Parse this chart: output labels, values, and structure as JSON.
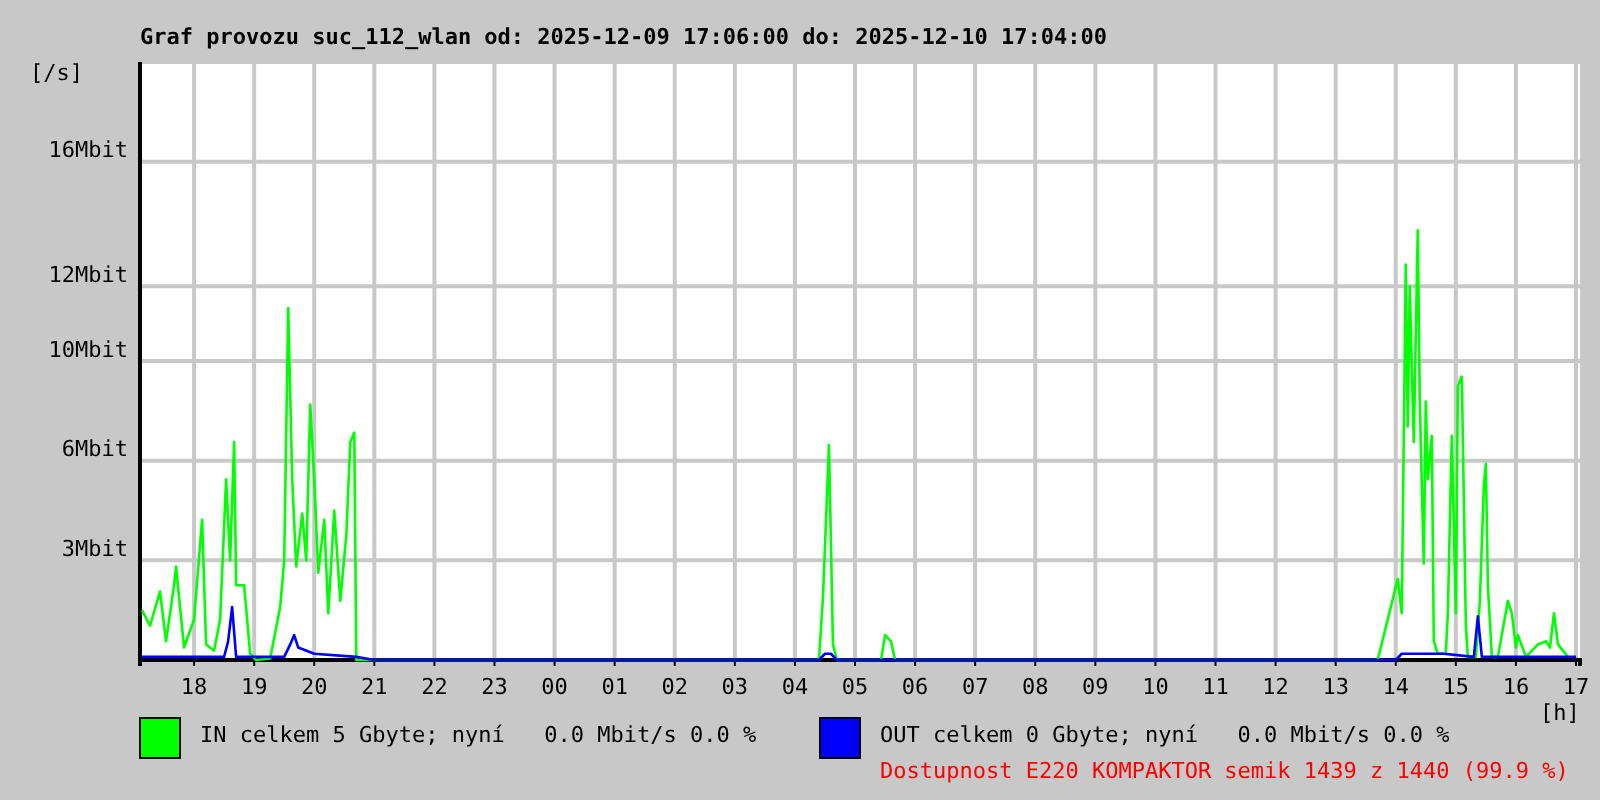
{
  "chart_data": {
    "type": "line",
    "title": "Graf provozu suc_112_wlan od: 2025-12-09 17:06:00 do: 2025-12-10 17:04:00",
    "ylabel": "[/s]",
    "xlabel": "[h]",
    "annotations": [
      "Dostupnost E220 KOMPAKTOR semik 1439 z 1440 (99.9 %)"
    ],
    "xlim": [
      "2025-12-09T17:06",
      "2025-12-10T17:04"
    ],
    "ylim": [
      0,
      19.2
    ],
    "xticks": [
      {
        "value": "2025-12-09T18:00",
        "label": "18"
      },
      {
        "value": "2025-12-09T19:00",
        "label": "19"
      },
      {
        "value": "2025-12-09T20:00",
        "label": "20"
      },
      {
        "value": "2025-12-09T21:00",
        "label": "21"
      },
      {
        "value": "2025-12-09T22:00",
        "label": "22"
      },
      {
        "value": "2025-12-09T23:00",
        "label": "23"
      },
      {
        "value": "2025-12-10T00:00",
        "label": "00"
      },
      {
        "value": "2025-12-10T01:00",
        "label": "01"
      },
      {
        "value": "2025-12-10T02:00",
        "label": "02"
      },
      {
        "value": "2025-12-10T03:00",
        "label": "03"
      },
      {
        "value": "2025-12-10T04:00",
        "label": "04"
      },
      {
        "value": "2025-12-10T05:00",
        "label": "05"
      },
      {
        "value": "2025-12-10T06:00",
        "label": "06"
      },
      {
        "value": "2025-12-10T07:00",
        "label": "07"
      },
      {
        "value": "2025-12-10T08:00",
        "label": "08"
      },
      {
        "value": "2025-12-10T09:00",
        "label": "09"
      },
      {
        "value": "2025-12-10T10:00",
        "label": "10"
      },
      {
        "value": "2025-12-10T11:00",
        "label": "11"
      },
      {
        "value": "2025-12-10T12:00",
        "label": "12"
      },
      {
        "value": "2025-12-10T13:00",
        "label": "13"
      },
      {
        "value": "2025-12-10T14:00",
        "label": "14"
      },
      {
        "value": "2025-12-10T15:00",
        "label": "15"
      },
      {
        "value": "2025-12-10T16:00",
        "label": "16"
      },
      {
        "value": "2025-12-10T17:00",
        "label": "17"
      }
    ],
    "yticks": [
      {
        "value": 3.2,
        "label": "3Mbit"
      },
      {
        "value": 6.4,
        "label": "6Mbit"
      },
      {
        "value": 9.6,
        "label": "10Mbit"
      },
      {
        "value": 12,
        "label": "12Mbit"
      },
      {
        "value": 16,
        "label": "16Mbit"
      },
      {
        "value": 19.2,
        "label": null
      }
    ],
    "grid": true,
    "legend": "bottom",
    "marker": "none",
    "series": [
      {
        "name": "IN celkem 5 Gbyte; nyní   0.0 Mbit/s 0.0 %",
        "color": "#00ff00",
        "x": [
          "2025-12-09T17:08",
          "2025-12-09T17:16",
          "2025-12-09T17:26",
          "2025-12-09T17:32",
          "2025-12-09T17:40",
          "2025-12-09T17:42",
          "2025-12-09T17:50",
          "2025-12-09T18:00",
          "2025-12-09T18:08",
          "2025-12-09T18:12",
          "2025-12-09T18:20",
          "2025-12-09T18:26",
          "2025-12-09T18:32",
          "2025-12-09T18:36",
          "2025-12-09T18:40",
          "2025-12-09T18:42",
          "2025-12-09T18:50",
          "2025-12-09T18:56",
          "2025-12-09T19:02",
          "2025-12-09T19:16",
          "2025-12-09T19:26",
          "2025-12-09T19:30",
          "2025-12-09T19:34",
          "2025-12-09T19:38",
          "2025-12-09T19:42",
          "2025-12-09T19:48",
          "2025-12-09T19:52",
          "2025-12-09T19:56",
          "2025-12-09T20:00",
          "2025-12-09T20:04",
          "2025-12-09T20:10",
          "2025-12-09T20:14",
          "2025-12-09T20:20",
          "2025-12-09T20:26",
          "2025-12-09T20:32",
          "2025-12-09T20:36",
          "2025-12-09T20:40",
          "2025-12-09T20:42",
          "2025-12-09T21:00",
          "2025-12-10T04:24",
          "2025-12-10T04:28",
          "2025-12-10T04:34",
          "2025-12-10T04:38",
          "2025-12-10T04:42",
          "2025-12-10T05:26",
          "2025-12-10T05:30",
          "2025-12-10T05:36",
          "2025-12-10T05:40",
          "2025-12-10T13:42",
          "2025-12-10T14:02",
          "2025-12-10T14:06",
          "2025-12-10T14:10",
          "2025-12-10T14:12",
          "2025-12-10T14:14",
          "2025-12-10T14:18",
          "2025-12-10T14:22",
          "2025-12-10T14:24",
          "2025-12-10T14:28",
          "2025-12-10T14:30",
          "2025-12-10T14:32",
          "2025-12-10T14:36",
          "2025-12-10T14:38",
          "2025-12-10T14:42",
          "2025-12-10T14:50",
          "2025-12-10T14:52",
          "2025-12-10T14:56",
          "2025-12-10T15:00",
          "2025-12-10T15:02",
          "2025-12-10T15:06",
          "2025-12-10T15:10",
          "2025-12-10T15:12",
          "2025-12-10T15:20",
          "2025-12-10T15:24",
          "2025-12-10T15:28",
          "2025-12-10T15:30",
          "2025-12-10T15:32",
          "2025-12-10T15:36",
          "2025-12-10T15:42",
          "2025-12-10T15:52",
          "2025-12-10T15:56",
          "2025-12-10T16:00",
          "2025-12-10T16:02",
          "2025-12-10T16:10",
          "2025-12-10T16:22",
          "2025-12-10T16:30",
          "2025-12-10T16:34",
          "2025-12-10T16:38",
          "2025-12-10T16:42",
          "2025-12-10T16:52"
        ],
        "values": [
          1.6,
          1.1,
          2.2,
          0.6,
          2.4,
          3.0,
          0.4,
          1.3,
          4.5,
          0.5,
          0.3,
          1.3,
          5.8,
          3.2,
          7.0,
          2.4,
          2.4,
          0.2,
          0,
          0.05,
          1.7,
          3.2,
          11.3,
          5.8,
          3.0,
          4.7,
          3.2,
          8.2,
          5.8,
          2.8,
          4.5,
          1.5,
          4.8,
          1.9,
          4.0,
          7.0,
          7.3,
          0,
          0,
          0,
          2.0,
          6.9,
          0.5,
          0,
          0,
          0.8,
          0.6,
          0,
          0,
          2.6,
          1.5,
          12.7,
          7.5,
          12.0,
          7.0,
          13.8,
          8.3,
          3.1,
          8.3,
          5.8,
          7.2,
          0.6,
          0.2,
          0.2,
          1.5,
          7.2,
          1.5,
          8.8,
          9.1,
          1.1,
          0.1,
          0.1,
          1.9,
          5.6,
          6.3,
          2.4,
          0.1,
          0.1,
          1.9,
          1.5,
          0.4,
          0.8,
          0.1,
          0.5,
          0.6,
          0.4,
          1.5,
          0.5,
          0.1
        ]
      },
      {
        "name": "OUT celkem 0 Gbyte; nyní   0.0 Mbit/s 0.0 %",
        "color": "#0000ff",
        "x": [
          "2025-12-09T17:08",
          "2025-12-09T18:30",
          "2025-12-09T18:34",
          "2025-12-09T18:38",
          "2025-12-09T18:42",
          "2025-12-09T19:30",
          "2025-12-09T19:36",
          "2025-12-09T19:40",
          "2025-12-09T19:44",
          "2025-12-09T20:00",
          "2025-12-09T20:42",
          "2025-12-09T21:00",
          "2025-12-10T04:24",
          "2025-12-10T04:30",
          "2025-12-10T04:36",
          "2025-12-10T04:42",
          "2025-12-10T14:00",
          "2025-12-10T14:06",
          "2025-12-10T14:48",
          "2025-12-10T15:18",
          "2025-12-10T15:22",
          "2025-12-10T15:26",
          "2025-12-10T16:00",
          "2025-12-10T17:00"
        ],
        "values": [
          0.1,
          0.1,
          0.6,
          1.7,
          0.1,
          0.1,
          0.5,
          0.8,
          0.4,
          0.2,
          0.1,
          0,
          0,
          0.2,
          0.2,
          0,
          0,
          0.2,
          0.2,
          0.1,
          1.4,
          0.1,
          0.1,
          0.1
        ]
      }
    ]
  }
}
